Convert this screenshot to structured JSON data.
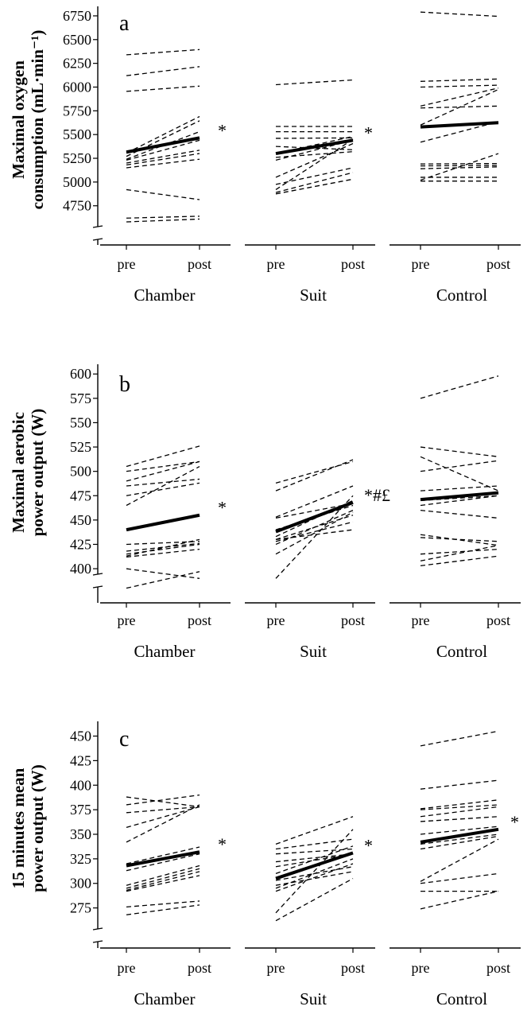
{
  "chart_data": [
    {
      "type": "line",
      "panel_label": "a",
      "ylabel_lines": [
        "Maximal oxygen",
        "consumption (mL·min⁻¹)"
      ],
      "yticks": [
        4750,
        5000,
        5250,
        5500,
        5750,
        6000,
        6250,
        6500,
        6750
      ],
      "ylim": [
        4530,
        6850
      ],
      "x_categories": [
        "pre",
        "post"
      ],
      "groups": [
        {
          "name": "Chamber",
          "significance": "*",
          "mean": [
            5315,
            5465
          ],
          "individuals": [
            [
              6340,
              6395
            ],
            [
              6120,
              6215
            ],
            [
              5955,
              6010
            ],
            [
              5305,
              5690
            ],
            [
              5270,
              5645
            ],
            [
              5240,
              5530
            ],
            [
              5230,
              5440
            ],
            [
              5200,
              5335
            ],
            [
              5180,
              5300
            ],
            [
              5150,
              5240
            ],
            [
              4920,
              4815
            ],
            [
              4620,
              4640
            ],
            [
              4580,
              4610
            ]
          ]
        },
        {
          "name": "Suit",
          "significance": "*",
          "mean": [
            5300,
            5440
          ],
          "individuals": [
            [
              6025,
              6075
            ],
            [
              5585,
              5585
            ],
            [
              5530,
              5530
            ],
            [
              5460,
              5465
            ],
            [
              5375,
              5340
            ],
            [
              5300,
              5480
            ],
            [
              5260,
              5320
            ],
            [
              5230,
              5440
            ],
            [
              5050,
              5405
            ],
            [
              4975,
              5150
            ],
            [
              4920,
              5450
            ],
            [
              4890,
              5100
            ],
            [
              4875,
              5030
            ]
          ]
        },
        {
          "name": "Control",
          "significance": "",
          "mean": [
            5580,
            5625
          ],
          "individuals": [
            [
              6790,
              6745
            ],
            [
              6060,
              6085
            ],
            [
              6000,
              6020
            ],
            [
              5800,
              5990
            ],
            [
              5780,
              5800
            ],
            [
              5600,
              5975
            ],
            [
              5420,
              5635
            ],
            [
              5190,
              5195
            ],
            [
              5170,
              5175
            ],
            [
              5140,
              5160
            ],
            [
              5050,
              5050
            ],
            [
              5020,
              5300
            ],
            [
              5010,
              5010
            ]
          ]
        }
      ]
    },
    {
      "type": "line",
      "panel_label": "b",
      "ylabel_lines": [
        "Maximal aerobic",
        "power output (W)"
      ],
      "yticks": [
        400,
        425,
        450,
        475,
        500,
        525,
        550,
        575,
        600
      ],
      "ylim": [
        378,
        610
      ],
      "x_categories": [
        "pre",
        "post"
      ],
      "groups": [
        {
          "name": "Chamber",
          "significance": "*",
          "mean": [
            440,
            455
          ],
          "individuals": [
            [
              505,
              526
            ],
            [
              500,
              510
            ],
            [
              490,
              510
            ],
            [
              485,
              492
            ],
            [
              475,
              488
            ],
            [
              465,
              505
            ],
            [
              440,
              455
            ],
            [
              425,
              428
            ],
            [
              418,
              426
            ],
            [
              415,
              425
            ],
            [
              413,
              430
            ],
            [
              412,
              420
            ],
            [
              400,
              390
            ],
            [
              380,
              397
            ]
          ]
        },
        {
          "name": "Suit",
          "significance": "*#£",
          "mean": [
            438,
            468
          ],
          "individuals": [
            [
              488,
              510
            ],
            [
              480,
              512
            ],
            [
              453,
              485
            ],
            [
              452,
              467
            ],
            [
              440,
              465
            ],
            [
              433,
              470
            ],
            [
              430,
              455
            ],
            [
              428,
              448
            ],
            [
              425,
              460
            ],
            [
              415,
              458
            ],
            [
              390,
              475
            ],
            [
              430,
              440
            ]
          ]
        },
        {
          "name": "Control",
          "significance": "",
          "mean": [
            471,
            478
          ],
          "individuals": [
            [
              575,
              598
            ],
            [
              525,
              515
            ],
            [
              515,
              480
            ],
            [
              500,
              511
            ],
            [
              480,
              485
            ],
            [
              470,
              475
            ],
            [
              465,
              475
            ],
            [
              460,
              452
            ],
            [
              435,
              424
            ],
            [
              432,
              428
            ],
            [
              415,
              420
            ],
            [
              408,
              424
            ],
            [
              403,
              413
            ]
          ]
        }
      ]
    },
    {
      "type": "line",
      "panel_label": "c",
      "ylabel_lines": [
        "15 minutes mean",
        "power output (W)"
      ],
      "yticks": [
        275,
        300,
        325,
        350,
        375,
        400,
        425,
        450
      ],
      "ylim": [
        252,
        465
      ],
      "x_categories": [
        "pre",
        "post"
      ],
      "groups": [
        {
          "name": "Chamber",
          "significance": "*",
          "mean": [
            318,
            332
          ],
          "individuals": [
            [
              388,
              378
            ],
            [
              380,
              390
            ],
            [
              372,
              378
            ],
            [
              357,
              378
            ],
            [
              342,
              380
            ],
            [
              320,
              337
            ],
            [
              313,
              330
            ],
            [
              298,
              318
            ],
            [
              295,
              315
            ],
            [
              293,
              312
            ],
            [
              292,
              308
            ],
            [
              276,
              282
            ],
            [
              268,
              278
            ]
          ]
        },
        {
          "name": "Suit",
          "significance": "*",
          "mean": [
            305,
            331
          ],
          "individuals": [
            [
              340,
              368
            ],
            [
              335,
              345
            ],
            [
              330,
              335
            ],
            [
              322,
              330
            ],
            [
              317,
              330
            ],
            [
              310,
              338
            ],
            [
              303,
              317
            ],
            [
              298,
              312
            ],
            [
              295,
              325
            ],
            [
              292,
              320
            ],
            [
              270,
              355
            ],
            [
              262,
              305
            ]
          ]
        },
        {
          "name": "Control",
          "significance": "*",
          "mean": [
            342,
            355
          ],
          "individuals": [
            [
              440,
              455
            ],
            [
              396,
              405
            ],
            [
              376,
              385
            ],
            [
              375,
              380
            ],
            [
              368,
              378
            ],
            [
              363,
              368
            ],
            [
              350,
              358
            ],
            [
              340,
              350
            ],
            [
              335,
              348
            ],
            [
              302,
              345
            ],
            [
              300,
              310
            ],
            [
              292,
              292
            ],
            [
              274,
              292
            ]
          ]
        }
      ]
    }
  ]
}
